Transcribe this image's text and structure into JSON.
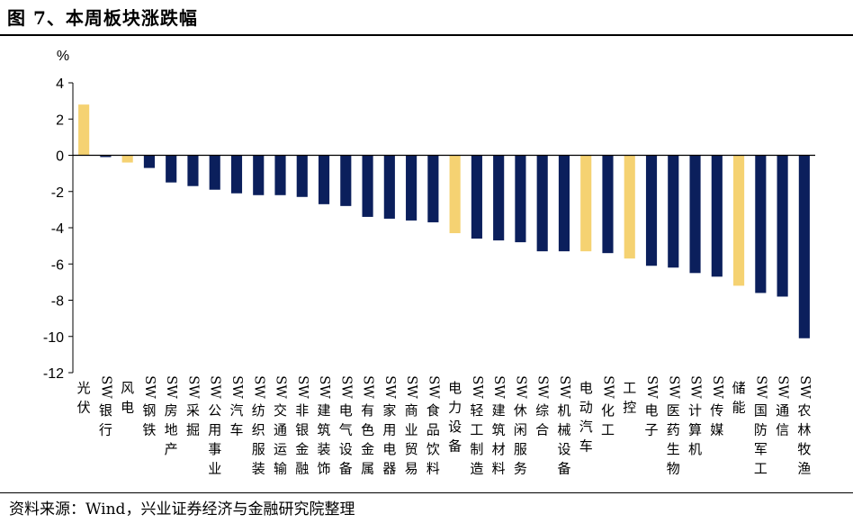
{
  "header": {
    "title": "图 7、本周板块涨跌幅"
  },
  "footer": {
    "source": "资料来源：Wind，兴业证券经济与金融研究院整理"
  },
  "colors": {
    "navy": "#0b1f5c",
    "gold": "#f5d272"
  },
  "chart_data": {
    "type": "bar",
    "title": "本周板块涨跌幅",
    "ylabel": "%",
    "ylim": [
      -12,
      4
    ],
    "yticks": [
      4,
      2,
      0,
      -2,
      -4,
      -6,
      -8,
      -10,
      -12
    ],
    "grid": false,
    "legend": "none",
    "categories": [
      "光伏",
      "SW银行",
      "风电",
      "SW钢铁",
      "SW房地产",
      "SW采掘",
      "SW公用事业",
      "SW汽车",
      "SW纺织服装",
      "SW交通运输",
      "SW非银金融",
      "SW建筑装饰",
      "SW电气设备",
      "SW有色金属",
      "SW家用电器",
      "SW商业贸易",
      "SW食品饮料",
      "电力设备",
      "SW轻工制造",
      "SW建筑材料",
      "SW休闲服务",
      "SW综合",
      "SW机械设备",
      "电动汽车",
      "SW化工",
      "工控",
      "SW电子",
      "SW医药生物",
      "SW计算机",
      "SW传媒",
      "储能",
      "SW国防军工",
      "SW通信",
      "SW农林牧渔"
    ],
    "values": [
      2.8,
      -0.1,
      -0.4,
      -0.7,
      -1.5,
      -1.7,
      -1.9,
      -2.1,
      -2.2,
      -2.2,
      -2.3,
      -2.7,
      -2.8,
      -3.4,
      -3.5,
      -3.6,
      -3.7,
      -4.3,
      -4.6,
      -4.7,
      -4.8,
      -5.3,
      -5.3,
      -5.3,
      -5.4,
      -5.7,
      -6.1,
      -6.2,
      -6.5,
      -6.7,
      -7.2,
      -7.6,
      -7.8,
      -10.1
    ],
    "highlighted": [
      "光伏",
      "风电",
      "电力设备",
      "电动汽车",
      "工控",
      "储能"
    ]
  }
}
